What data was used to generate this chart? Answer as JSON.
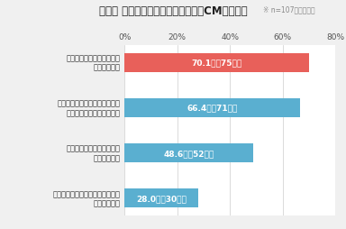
{
  "title": "『図』 他の広告媒体に対するテレビCMの優位性",
  "subtitle": "※ n=107／複数回答",
  "categories": [
    "消費者の購買意欲を促進しやすい\n媒体である点",
    "消費者の印象に残りやすい\n媒体である点",
    "消費者が感じるブランド価値が\n向上しやすい媒体である点",
    "消費者から信頼されている\n媒体である点"
  ],
  "values": [
    28.0,
    48.6,
    66.4,
    70.1
  ],
  "labels": [
    "28.0％（30名）",
    "48.6％（52名）",
    "66.4％（71名）",
    "70.1％（75名）"
  ],
  "bar_colors": [
    "#5aafd0",
    "#5aafd0",
    "#5aafd0",
    "#e8605a"
  ],
  "background_color": "#f0f0f0",
  "plot_bg_color": "#ffffff",
  "xlim": [
    0,
    80
  ],
  "xticks": [
    0,
    20,
    40,
    60,
    80
  ],
  "xtick_labels": [
    "0%",
    "20%",
    "40%",
    "60%",
    "80%"
  ],
  "title_fontsize": 8.5,
  "subtitle_fontsize": 5.5,
  "label_fontsize": 6.5,
  "category_fontsize": 6.0,
  "tick_fontsize": 6.5
}
